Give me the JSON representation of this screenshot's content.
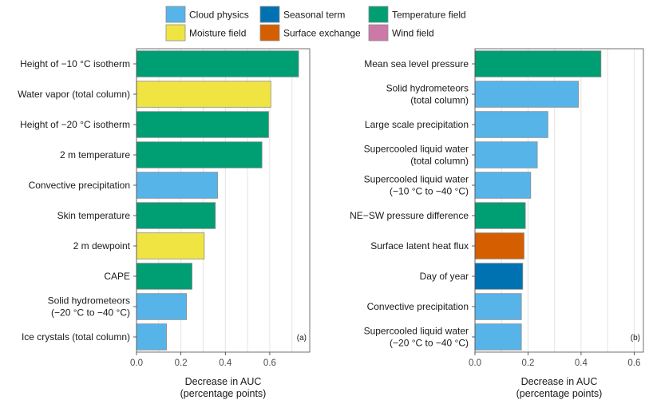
{
  "chart_data": [
    {
      "type": "bar",
      "orientation": "horizontal",
      "panel_label": "(a)",
      "xlabel": [
        "Decrease in AUC",
        "(percentage points)"
      ],
      "xlim": [
        0,
        0.78
      ],
      "xticks": [
        0.0,
        0.2,
        0.4,
        0.6
      ],
      "tick_labels": [
        "0.0",
        "0.2",
        "0.4",
        "0.6"
      ],
      "grid": true,
      "bars": [
        {
          "label": [
            "Height of −10 °C isotherm"
          ],
          "value": 0.73,
          "group": "temp"
        },
        {
          "label": [
            "Water vapor (total column)"
          ],
          "value": 0.605,
          "group": "moist"
        },
        {
          "label": [
            "Height of −20 °C isotherm"
          ],
          "value": 0.595,
          "group": "temp"
        },
        {
          "label": [
            "2 m temperature"
          ],
          "value": 0.565,
          "group": "temp"
        },
        {
          "label": [
            "Convective precipitation"
          ],
          "value": 0.365,
          "group": "cloud"
        },
        {
          "label": [
            "Skin temperature"
          ],
          "value": 0.355,
          "group": "temp"
        },
        {
          "label": [
            "2 m dewpoint"
          ],
          "value": 0.305,
          "group": "moist"
        },
        {
          "label": [
            "CAPE"
          ],
          "value": 0.25,
          "group": "temp"
        },
        {
          "label": [
            "Solid hydrometeors",
            "(−20 °C to −40 °C)"
          ],
          "value": 0.225,
          "group": "cloud"
        },
        {
          "label": [
            "Ice crystals (total column)"
          ],
          "value": 0.135,
          "group": "cloud"
        }
      ]
    },
    {
      "type": "bar",
      "orientation": "horizontal",
      "panel_label": "(b)",
      "xlabel": [
        "Decrease in AUC",
        "(percentage points)"
      ],
      "xlim": [
        0,
        0.635
      ],
      "xticks": [
        0.0,
        0.2,
        0.4,
        0.6
      ],
      "tick_labels": [
        "0.0",
        "0.2",
        "0.4",
        "0.6"
      ],
      "grid": true,
      "bars": [
        {
          "label": [
            "Mean sea level pressure"
          ],
          "value": 0.475,
          "group": "temp"
        },
        {
          "label": [
            "Solid hydrometeors",
            "(total column)"
          ],
          "value": 0.39,
          "group": "cloud"
        },
        {
          "label": [
            "Large scale precipitation"
          ],
          "value": 0.275,
          "group": "cloud"
        },
        {
          "label": [
            "Supercooled liquid water",
            "(total column)"
          ],
          "value": 0.235,
          "group": "cloud"
        },
        {
          "label": [
            "Supercooled liquid water",
            "(−10 °C to −40 °C)"
          ],
          "value": 0.21,
          "group": "cloud"
        },
        {
          "label": [
            "NE−SW pressure difference"
          ],
          "value": 0.19,
          "group": "temp"
        },
        {
          "label": [
            "Surface latent heat flux"
          ],
          "value": 0.185,
          "group": "surf"
        },
        {
          "label": [
            "Day of year"
          ],
          "value": 0.18,
          "group": "season"
        },
        {
          "label": [
            "Convective precipitation"
          ],
          "value": 0.175,
          "group": "cloud"
        },
        {
          "label": [
            "Supercooled liquid water",
            "(−20 °C to −40 °C)"
          ],
          "value": 0.175,
          "group": "cloud"
        }
      ]
    }
  ],
  "legend": {
    "placement": "top-center",
    "items": [
      {
        "key": "cloud",
        "name": "Cloud physics",
        "color": "#56b4e9"
      },
      {
        "key": "season",
        "name": "Seasonal term",
        "color": "#0072b2"
      },
      {
        "key": "temp",
        "name": "Temperature field",
        "color": "#009e73"
      },
      {
        "key": "moist",
        "name": "Moisture field",
        "color": "#f0e442"
      },
      {
        "key": "surf",
        "name": "Surface exchange",
        "color": "#d55e00"
      },
      {
        "key": "wind",
        "name": "Wind field",
        "color": "#cc79a7"
      }
    ]
  }
}
